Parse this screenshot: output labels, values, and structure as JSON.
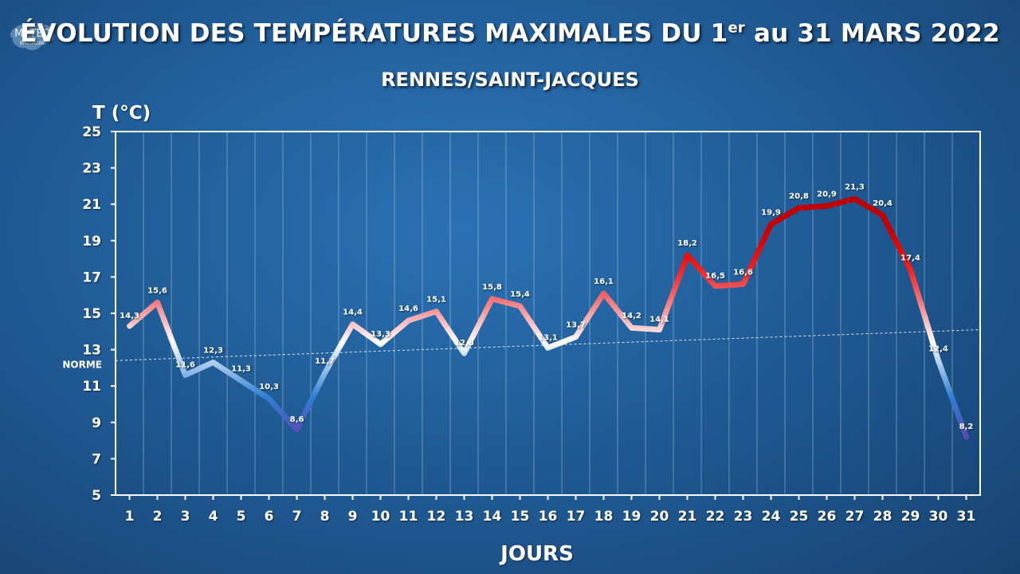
{
  "header": {
    "title_main": "ÉVOLUTION DES TEMPÉRATURES MAXIMALES DU 1",
    "title_sup": "er",
    "title_end": " au 31 MARS 2022",
    "subtitle": "RENNES/SAINT-JACQUES",
    "logo_text_1": "MÉTÉO",
    "logo_text_2": "BRETAGNE"
  },
  "chart_data": {
    "type": "line",
    "title": "ÉVOLUTION DES TEMPÉRATURES MAXIMALES DU 1er au 31 MARS 2022",
    "subtitle": "RENNES/SAINT-JACQUES",
    "xlabel": "JOURS",
    "ylabel": "T (°C)",
    "ylim": [
      5,
      25
    ],
    "yticks": [
      5,
      7,
      9,
      11,
      13,
      15,
      17,
      19,
      21,
      23,
      25
    ],
    "x": [
      1,
      2,
      3,
      4,
      5,
      6,
      7,
      8,
      9,
      10,
      11,
      12,
      13,
      14,
      15,
      16,
      17,
      18,
      19,
      20,
      21,
      22,
      23,
      24,
      25,
      26,
      27,
      28,
      29,
      30,
      31
    ],
    "series": [
      {
        "values": [
          14.3,
          15.6,
          11.6,
          12.3,
          11.3,
          10.3,
          8.6,
          11.7,
          14.4,
          13.3,
          14.6,
          15.1,
          12.8,
          15.8,
          15.4,
          13.1,
          13.7,
          16.1,
          14.2,
          14.1,
          18.2,
          16.5,
          16.6,
          19.9,
          20.8,
          20.9,
          21.3,
          20.4,
          17.4,
          12.4,
          8.2
        ],
        "labels": [
          "14,3",
          "15,6",
          "11,6",
          "12,3",
          "11,3",
          "10,3",
          "8,6",
          "11,7",
          "14,4",
          "13,3",
          "14,6",
          "15,1",
          "12,8",
          "15,8",
          "15,4",
          "13,1",
          "13,7",
          "16,1",
          "14,2",
          "14,1",
          "18,2",
          "16,5",
          "16,6",
          "19,9",
          "20,8",
          "20,9",
          "21,3",
          "20,4",
          "17,4",
          "12,4",
          "8,2"
        ]
      }
    ],
    "norm": {
      "label": "NORME",
      "start": 12.4,
      "end": 14.1
    },
    "grid": true,
    "colors": {
      "cold_dark": "#6a35a8",
      "cold": "#2f7fd2",
      "neutral": "#ffffff",
      "warm": "#f06468",
      "hot": "#ee1c1c",
      "very_hot": "#c60000"
    }
  }
}
